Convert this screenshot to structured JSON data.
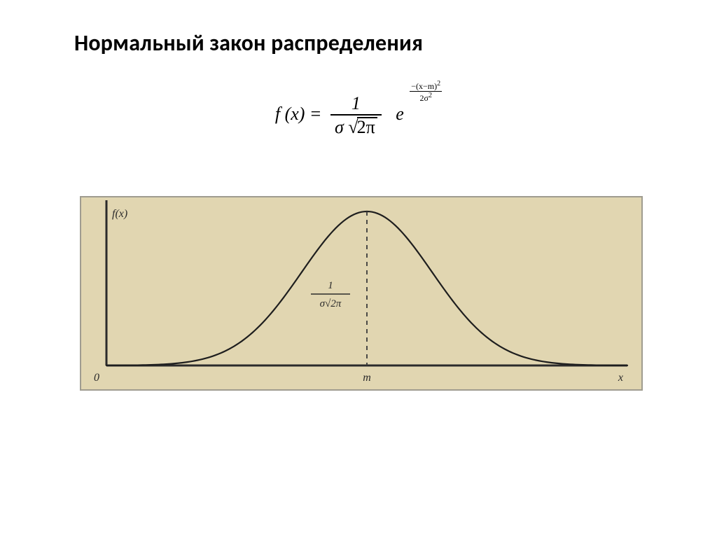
{
  "title": "Нормальный закон распределения",
  "formula": {
    "lhs": "f (x) =",
    "frac_num": "1",
    "sigma": "σ",
    "sqrt_inner": "2π",
    "e": "e",
    "exp_num": "−(x−m)",
    "exp_num_sup": "2",
    "exp_den": "2σ",
    "exp_den_sup": "2"
  },
  "graph": {
    "type": "line",
    "background_color": "#e1d6b1",
    "border_color": "#9f9c90",
    "axis_color": "#2b2b2b",
    "curve_color": "#1e1e1e",
    "dash_color": "#3a3a3a",
    "y_axis_label": "f(x)",
    "origin_label": "0",
    "x_axis_label": "x",
    "peak_x_label": "m",
    "peak_fraction_num": "1",
    "peak_fraction_den": "σ√2π",
    "x_domain": [
      -4,
      4
    ],
    "mean": 0,
    "sigma": 1,
    "curve_line_width": 2.2,
    "axis_line_width": 3,
    "dash_pattern": "6 6",
    "label_fontsize_pt": 16,
    "small_fontsize_pt": 13
  }
}
